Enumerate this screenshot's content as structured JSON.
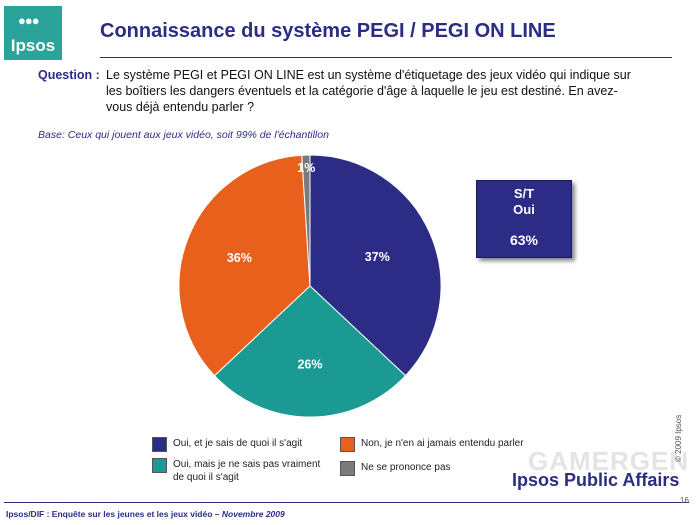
{
  "logo": {
    "text": "Ipsos"
  },
  "header": {
    "title": "Connaissance du système PEGI / PEGI ON LINE"
  },
  "question": {
    "label": "Question :",
    "text": "Le système PEGI et PEGI ON LINE est un système d'étiquetage des jeux vidéo qui indique sur les boîtiers les dangers éventuels et la catégorie d'âge à laquelle le jeu est destiné. En avez-vous déjà entendu parler ?"
  },
  "base": "Base: Ceux qui jouent aux jeux vidéo, soit 99% de l'échantillon",
  "summary_box": {
    "label_line1": "S/T",
    "label_line2": "Oui",
    "value": "63%"
  },
  "chart_data": {
    "type": "pie",
    "slices": [
      {
        "label": "Oui, et je sais de quoi il s'agit",
        "value": 37,
        "display": "37%",
        "color": "#2c2c86"
      },
      {
        "label": "Oui, mais je ne sais pas vraiment de quoi il s'agit",
        "value": 26,
        "display": "26%",
        "color": "#1a9a93"
      },
      {
        "label": "Non, je n'en ai jamais entendu parler",
        "value": 36,
        "display": "36%",
        "color": "#e8601c"
      },
      {
        "label": "Ne se prononce pas",
        "value": 1,
        "display": "1%",
        "color": "#7a7a7a"
      }
    ],
    "legend_position": "bottom"
  },
  "footer": {
    "left": "Ipsos/DIF : Enquête sur les jeunes et les jeux vidéo",
    "date": "Novembre 2009",
    "page": "16"
  },
  "brand": "Ipsos Public Affairs",
  "watermark": "GAMERGEN",
  "copyright": "© 2009 Ipsos"
}
